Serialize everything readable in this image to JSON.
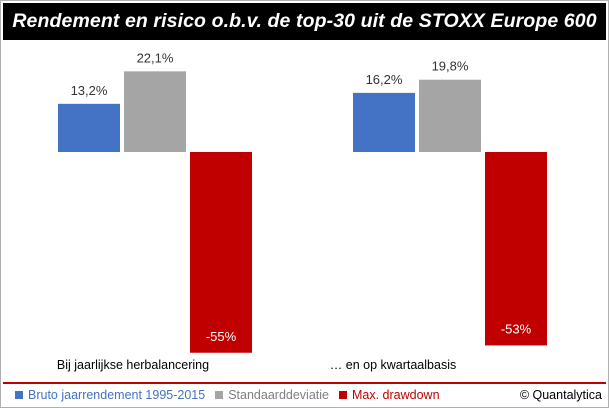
{
  "title": "Rendement en risico o.b.v. de top-30 uit de STOXX Europe 600",
  "copyright": "© Quantalytica",
  "colors": {
    "blue": "#4472c4",
    "gray": "#a5a5a5",
    "red": "#c00000",
    "rule": "#c00000",
    "title_bg": "#000000"
  },
  "legend": [
    {
      "label": "Bruto jaarrendement 1995-2015",
      "color": "#4472c4",
      "text_color": "#4472c4"
    },
    {
      "label": "Standaarddeviatie",
      "color": "#a5a5a5",
      "text_color": "#808080"
    },
    {
      "label": "Max. drawdown",
      "color": "#c00000",
      "text_color": "#c00000"
    }
  ],
  "chart_data": {
    "type": "bar",
    "title": "Rendement en risico o.b.v. de top-30 uit de STOXX Europe 600",
    "categories": [
      "Bij jaarlijkse herbalancering",
      "… en op kwartaalbasis"
    ],
    "series": [
      {
        "name": "Bruto jaarrendement 1995-2015",
        "color": "#4472c4",
        "values": [
          13.2,
          16.2
        ],
        "labels": [
          "13,2%",
          "16,2%"
        ]
      },
      {
        "name": "Standaarddeviatie",
        "color": "#a5a5a5",
        "values": [
          22.1,
          19.8
        ],
        "labels": [
          "22,1%",
          "19,8%"
        ]
      },
      {
        "name": "Max. drawdown",
        "color": "#c00000",
        "values": [
          -55,
          -53
        ],
        "labels": [
          "-55%",
          "-53%"
        ]
      }
    ],
    "xlabel": "",
    "ylabel": "",
    "grid": false,
    "legend_position": "bottom"
  }
}
